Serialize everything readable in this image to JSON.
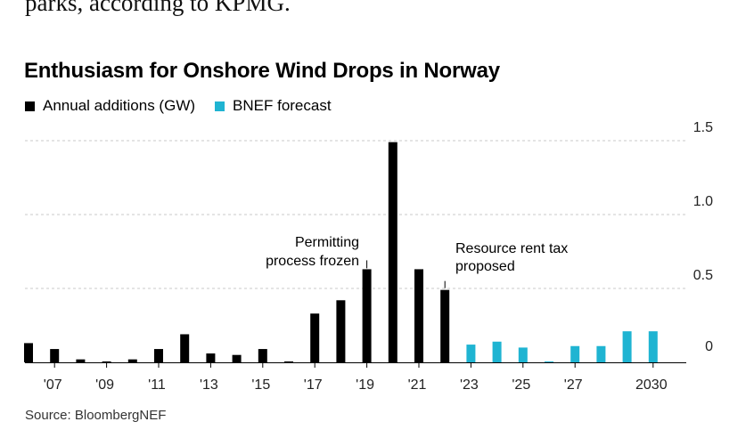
{
  "article": {
    "text": "parks, according to KPMG."
  },
  "chart_data": {
    "type": "bar",
    "title": "Enthusiasm for Onshore Wind Drops in Norway",
    "xlabel": "",
    "ylabel": "",
    "ylim": [
      0,
      1.5
    ],
    "yticks": [
      0,
      0.5,
      1.0,
      1.5
    ],
    "ytick_labels": [
      "0",
      "0.5",
      "1.0",
      "1.5"
    ],
    "categories": [
      "2006",
      "2007",
      "2008",
      "2009",
      "2010",
      "2011",
      "2012",
      "2013",
      "2014",
      "2015",
      "2016",
      "2017",
      "2018",
      "2019",
      "2020",
      "2021",
      "2022",
      "2023",
      "2024",
      "2025",
      "2026",
      "2027",
      "2028",
      "2029",
      "2030"
    ],
    "xtick_labels": [
      {
        "category": "2007",
        "label": "'07"
      },
      {
        "category": "2009",
        "label": "'09"
      },
      {
        "category": "2011",
        "label": "'11"
      },
      {
        "category": "2013",
        "label": "'13"
      },
      {
        "category": "2015",
        "label": "'15"
      },
      {
        "category": "2017",
        "label": "'17"
      },
      {
        "category": "2019",
        "label": "'19"
      },
      {
        "category": "2021",
        "label": "'21"
      },
      {
        "category": "2023",
        "label": "'23"
      },
      {
        "category": "2025",
        "label": "'25"
      },
      {
        "category": "2027",
        "label": "'27"
      },
      {
        "category": "2030",
        "label": "2030"
      }
    ],
    "series": [
      {
        "name": "Annual additions (GW)",
        "color": "#000000",
        "values": [
          0.13,
          0.09,
          0.02,
          0.0,
          0.02,
          0.09,
          0.19,
          0.06,
          0.05,
          0.09,
          0.0,
          0.33,
          0.42,
          0.63,
          1.49,
          0.63,
          0.49,
          null,
          null,
          null,
          null,
          null,
          null,
          null,
          null
        ]
      },
      {
        "name": "BNEF forecast",
        "color": "#1fb4d2",
        "values": [
          null,
          null,
          null,
          null,
          null,
          null,
          null,
          null,
          null,
          null,
          null,
          null,
          null,
          null,
          null,
          null,
          null,
          0.12,
          0.14,
          0.1,
          0.0,
          0.11,
          0.11,
          0.21,
          0.21
        ]
      }
    ],
    "annotations": [
      {
        "category": "2019",
        "lines": [
          "Permitting",
          "process frozen"
        ]
      },
      {
        "category": "2022",
        "lines": [
          "Resource rent tax",
          "proposed"
        ]
      }
    ],
    "source": "Source: BloombergNEF",
    "grid": true,
    "legend_position": "top-left"
  }
}
